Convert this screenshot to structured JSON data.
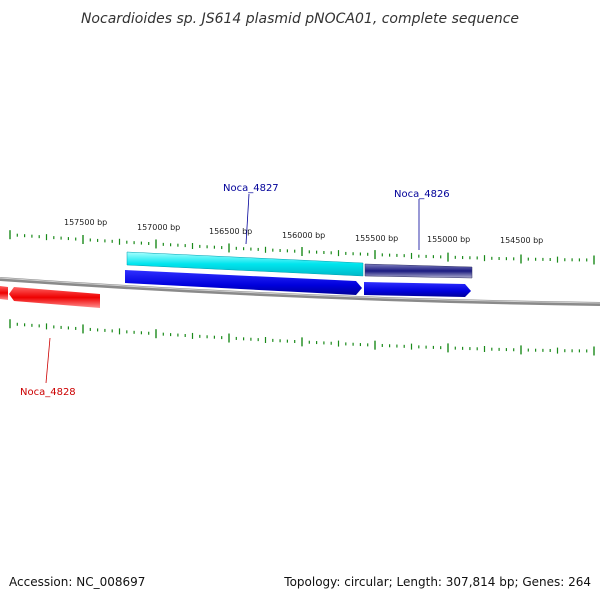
{
  "title": "Nocardioides sp. JS614 plasmid pNOCA01, complete sequence",
  "footer": {
    "accession": "Accession: NC_008697",
    "summary": "Topology: circular; Length: 307,814 bp; Genes: 264"
  },
  "scale_labels": [
    "157500 bp",
    "157000 bp",
    "156500 bp",
    "156000 bp",
    "155500 bp",
    "155000 bp",
    "154500 bp"
  ],
  "genes": [
    {
      "name": "Noca_4827",
      "color": "#000099"
    },
    {
      "name": "Noca_4826",
      "color": "#000099"
    },
    {
      "name": "Noca_4828",
      "color": "#cc0000"
    }
  ],
  "colors": {
    "tick": "#1a8a1a",
    "backbone": "#888888",
    "feature_cyan": "#00e5ee",
    "feature_navy": "#1a1a80",
    "cds_blue": "#0000dd",
    "cds_red": "#ee0000"
  }
}
